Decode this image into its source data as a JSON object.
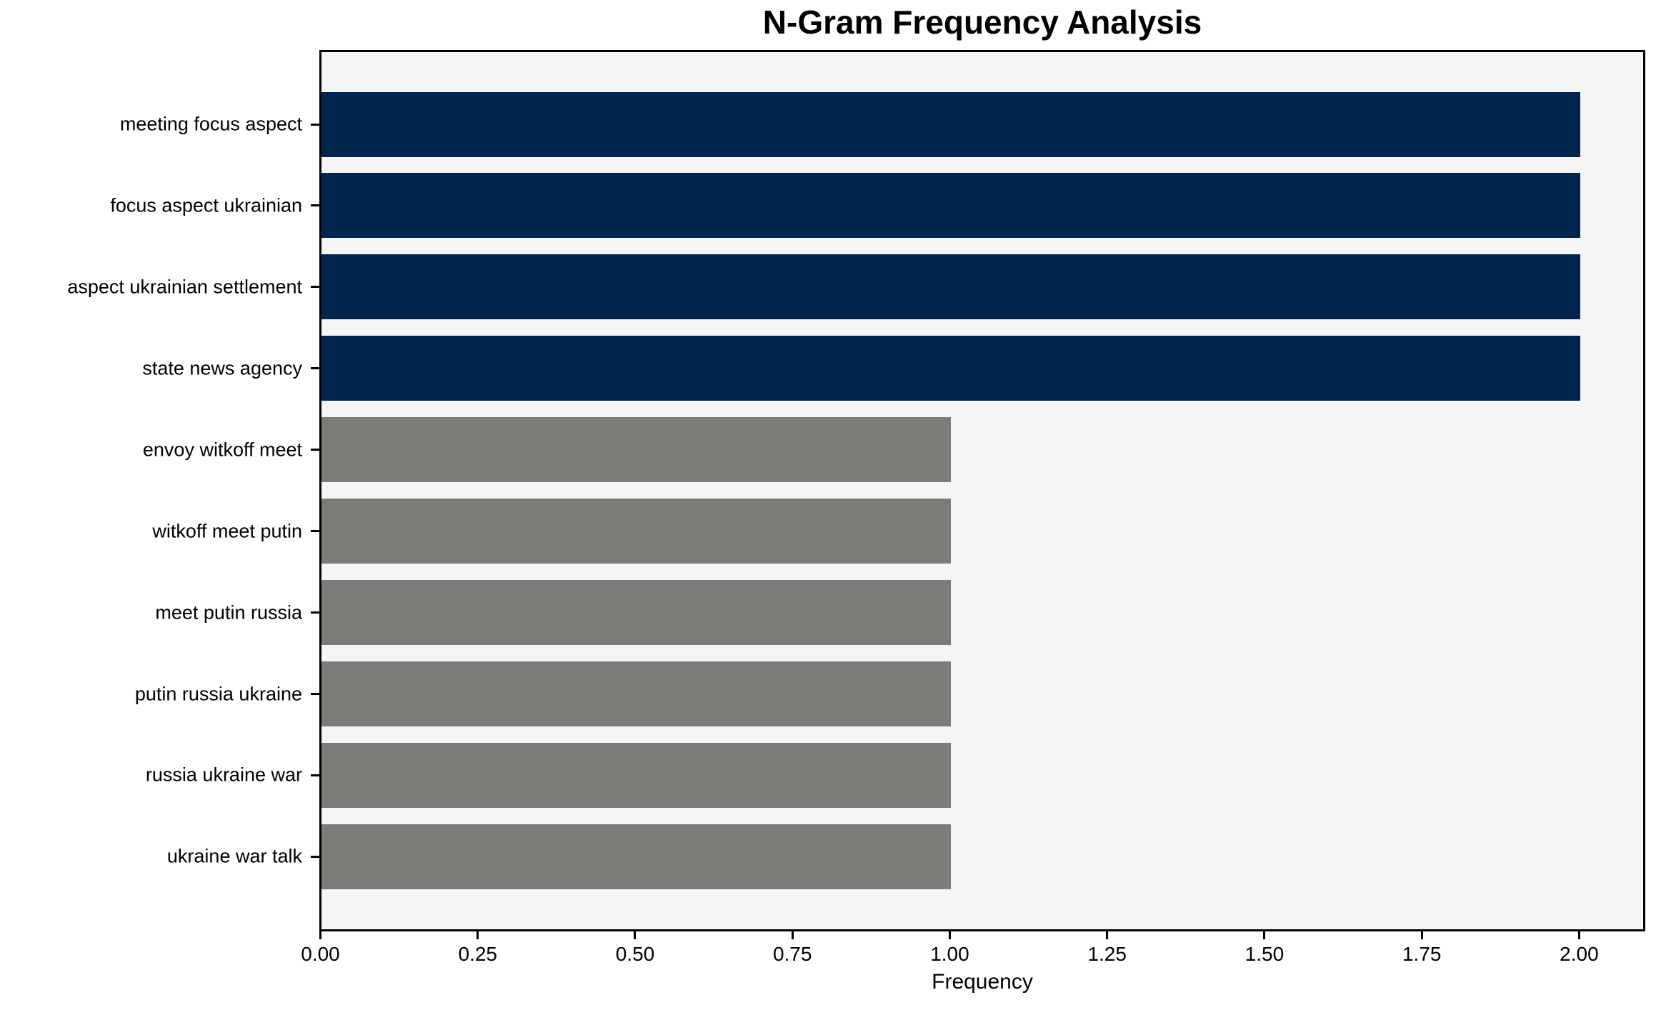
{
  "figure": {
    "title": "N-Gram Frequency Analysis"
  },
  "chart_data": {
    "type": "bar",
    "orientation": "horizontal",
    "title": "N-Gram Frequency Analysis",
    "xlabel": "Frequency",
    "ylabel": "",
    "categories": [
      "meeting focus aspect",
      "focus aspect ukrainian",
      "aspect ukrainian settlement",
      "state news agency",
      "envoy witkoff meet",
      "witkoff meet putin",
      "meet putin russia",
      "putin russia ukraine",
      "russia ukraine war",
      "ukraine war talk"
    ],
    "values": [
      2,
      2,
      2,
      2,
      1,
      1,
      1,
      1,
      1,
      1
    ],
    "bar_colors": [
      "#00254f",
      "#00254f",
      "#00254f",
      "#00254f",
      "#7b7b78",
      "#7b7b78",
      "#7b7b78",
      "#7b7b78",
      "#7b7b78",
      "#7b7b78"
    ],
    "x_ticks": [
      0,
      0.25,
      0.5,
      0.75,
      1,
      1.25,
      1.5,
      1.75,
      2
    ],
    "x_tick_labels": [
      "0.00",
      "0.25",
      "0.50",
      "0.75",
      "1.00",
      "1.25",
      "1.50",
      "1.75",
      "2.00"
    ],
    "xlim": [
      0,
      2.1
    ],
    "grid": false,
    "legend": null,
    "plot_background": "#f5f5f5",
    "figure_background": "#ffffff",
    "colors": {
      "high_freq_bar": "#00254f",
      "low_freq_bar": "#7b7b78",
      "axis": "#000000"
    }
  }
}
